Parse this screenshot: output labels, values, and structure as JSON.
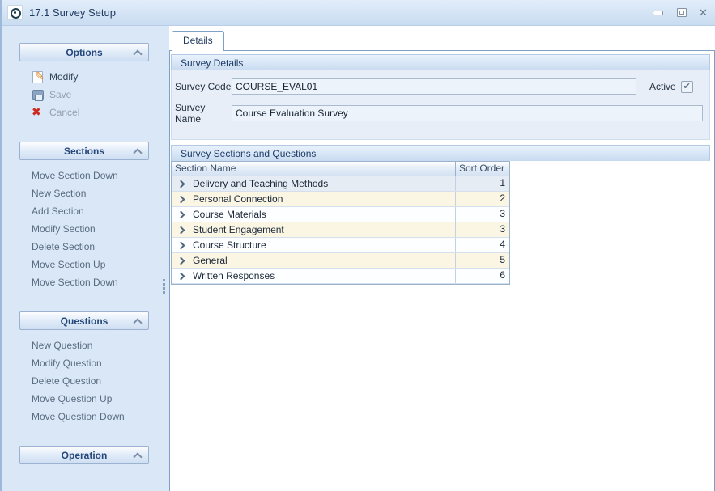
{
  "window": {
    "title": "17.1 Survey Setup",
    "controls": [
      "minimize-icon",
      "maximize-icon",
      "close-icon"
    ]
  },
  "sidebar": {
    "panels": [
      {
        "title": "Options",
        "items": [
          {
            "label": "Modify",
            "icon": "edit-icon",
            "enabled": true
          },
          {
            "label": "Save",
            "icon": "save-icon",
            "enabled": false
          },
          {
            "label": "Cancel",
            "icon": "cancel-icon",
            "enabled": false
          }
        ]
      },
      {
        "title": "Sections",
        "items": [
          {
            "label": "Move Section Down"
          },
          {
            "label": "New Section"
          },
          {
            "label": "Add Section"
          },
          {
            "label": "Modify Section"
          },
          {
            "label": "Delete Section"
          },
          {
            "label": "Move Section Up"
          },
          {
            "label": "Move Section Down"
          }
        ]
      },
      {
        "title": "Questions",
        "items": [
          {
            "label": "New Question"
          },
          {
            "label": "Modify Question"
          },
          {
            "label": "Delete Question"
          },
          {
            "label": "Move Question Up"
          },
          {
            "label": "Move Question Down"
          }
        ]
      },
      {
        "title": "Operation",
        "items": []
      }
    ]
  },
  "main": {
    "tab_label": "Details",
    "survey_details": {
      "title": "Survey Details",
      "code_label": "Survey Code",
      "code_value": "COURSE_EVAL01",
      "active_label": "Active",
      "active_checked": true,
      "name_label": "Survey Name",
      "name_value": "Course Evaluation Survey"
    },
    "sections_group": {
      "title": "Survey Sections and Questions",
      "columns": [
        "Section Name",
        "Sort Order"
      ],
      "rows": [
        {
          "name": "Delivery and Teaching Methods",
          "sort": "1"
        },
        {
          "name": "Personal Connection",
          "sort": "2"
        },
        {
          "name": "Course Materials",
          "sort": "3"
        },
        {
          "name": "Student Engagement",
          "sort": "3"
        },
        {
          "name": "Course Structure",
          "sort": "4"
        },
        {
          "name": "General",
          "sort": "5"
        },
        {
          "name": "Written Responses",
          "sort": "6"
        }
      ]
    }
  },
  "colors": {
    "titlebar_bg": "#cfe0f3",
    "sidebar_bg": "#d9e7f6",
    "panel_header_text": "#24477c",
    "group_header_text": "#1e3c66",
    "enabled_item_text": "#2f4257",
    "disabled_item_text": "#95a0ad",
    "grid_alt_row": "#fbf6e3",
    "grid_selected_row": "#e6ecf3",
    "cancel_red": "#cc2a1e",
    "pencil_orange": "#d98a2b"
  }
}
